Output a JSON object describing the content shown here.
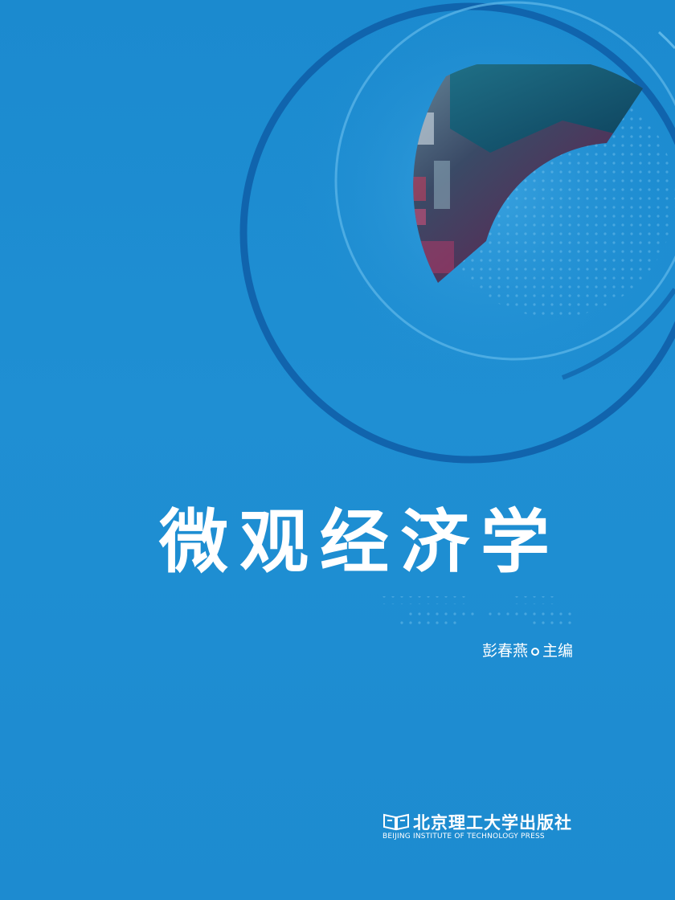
{
  "cover": {
    "title": "微观经济学",
    "author_name": "彭春燕",
    "author_role": "主编",
    "publisher_cn": "北京理工大学出版社",
    "publisher_en": "BEIJING INSTITUTE OF TECHNOLOGY PRESS"
  },
  "colors": {
    "background": "#1e8bd0",
    "ring": "#0f5fa8",
    "ring_light": "#5cb6e8",
    "text": "#ffffff"
  }
}
